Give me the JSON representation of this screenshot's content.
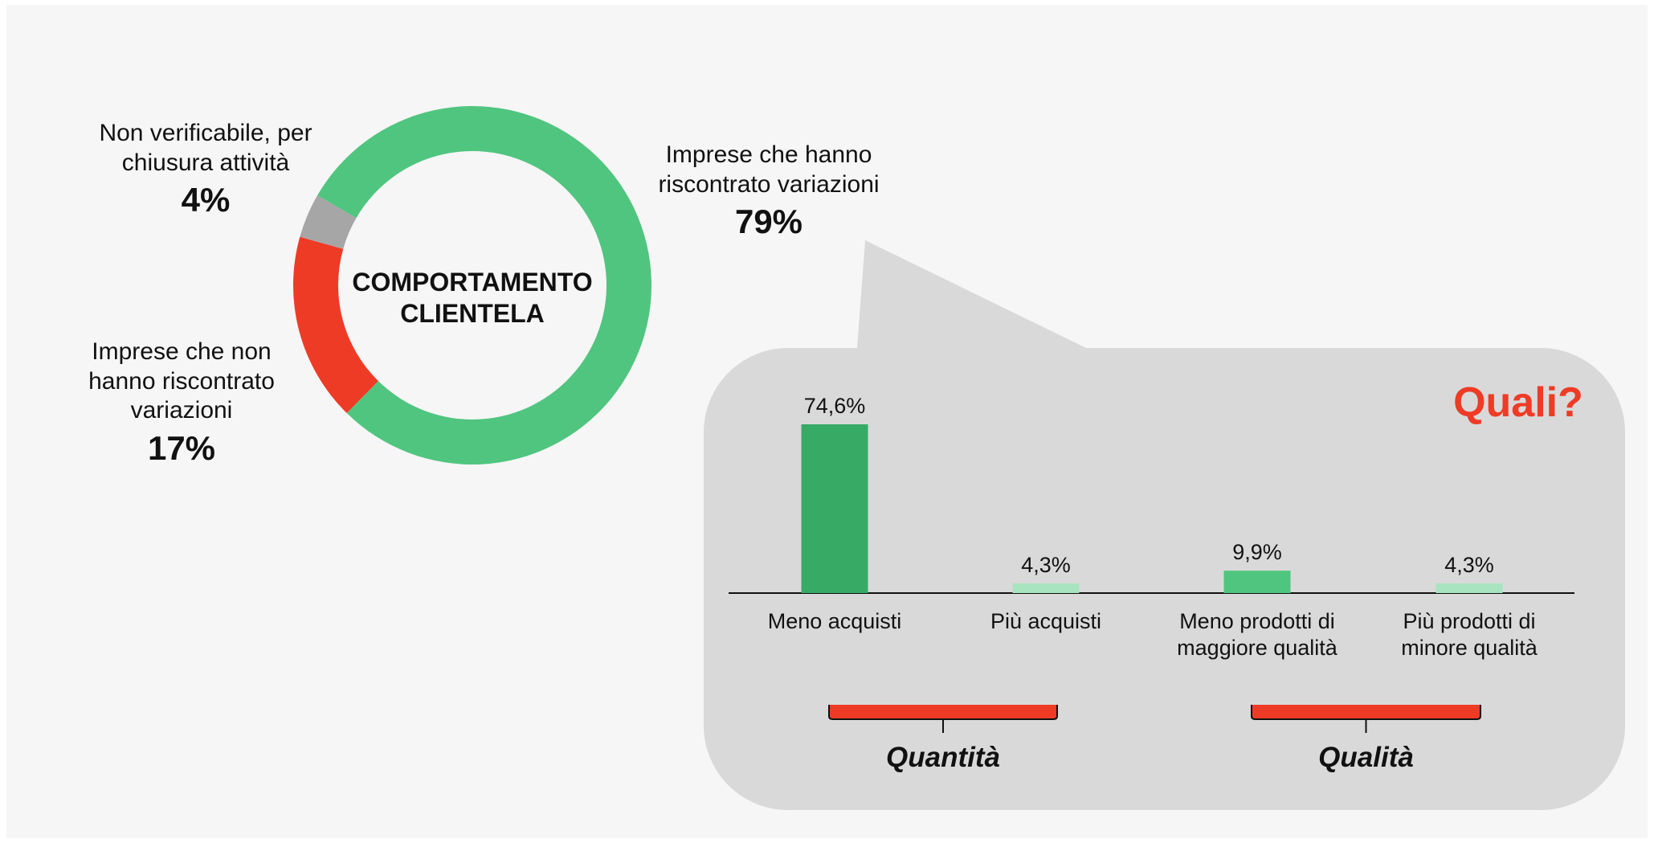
{
  "chart_data": [
    {
      "type": "pie",
      "title": "COMPORTAMENTO CLIENTELA",
      "categories": [
        "Imprese che hanno riscontrato variazioni",
        "Imprese che non hanno riscontrato variazioni",
        "Non verificabile, per chiusura attività"
      ],
      "values": [
        79,
        17,
        4
      ],
      "value_labels": [
        "79%",
        "17%",
        "4%"
      ],
      "colors": [
        "#50c57f",
        "#ee3b26",
        "#a6a6a6"
      ]
    },
    {
      "type": "bar",
      "title": "Quali?",
      "categories": [
        "Meno acquisti",
        "Più acquisti",
        "Meno prodotti di maggiore qualità",
        "Più prodotti di minore qualità"
      ],
      "values": [
        74.6,
        4.3,
        9.9,
        4.3
      ],
      "value_labels": [
        "74,6%",
        "4,3%",
        "9,9%",
        "4,3%"
      ],
      "colors": [
        "#37aa66",
        "#a8e4c0",
        "#50c57f",
        "#a8e4c0"
      ],
      "groups": [
        "Quantità",
        "Qualità"
      ]
    }
  ]
}
